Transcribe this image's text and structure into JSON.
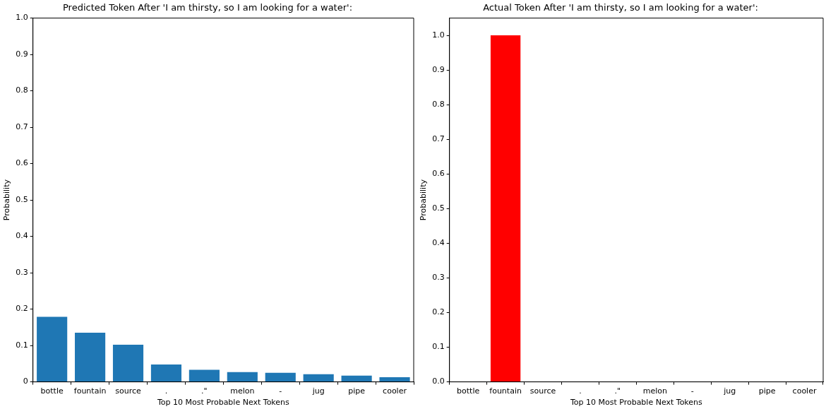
{
  "chart_data": [
    {
      "type": "bar",
      "title": "Predicted Token After 'I am thirsty, so I am looking for a water':",
      "xlabel": "Top 10 Most Probable Next Tokens",
      "ylabel": "Probability",
      "categories": [
        "bottle",
        "fountain",
        "source",
        ".",
        ".\"",
        "melon",
        "-",
        "jug",
        "pipe",
        "cooler"
      ],
      "values": [
        0.179,
        0.135,
        0.102,
        0.048,
        0.033,
        0.027,
        0.025,
        0.021,
        0.017,
        0.013
      ],
      "color": "#1f77b4",
      "ylim": [
        0,
        1
      ],
      "yticks": [
        0,
        {
          "value": 0.1,
          "label": "0.1"
        },
        {
          "value": 0.2,
          "label": "0.2"
        },
        {
          "value": 0.3,
          "label": "0.3"
        },
        {
          "value": 0.4,
          "label": "0.4"
        },
        {
          "value": 0.5,
          "label": "0.5"
        },
        {
          "value": 0.6,
          "label": "0.6"
        },
        {
          "value": 0.7,
          "label": "0.7"
        },
        {
          "value": 0.8,
          "label": "0.8"
        },
        {
          "value": 0.9,
          "label": "0.9"
        },
        {
          "value": 1,
          "label": "1.0"
        }
      ],
      "grid": false
    },
    {
      "type": "bar",
      "title": "Actual Token After 'I am thirsty, so I am looking for a water':",
      "xlabel": "Top 10 Most Probable Next Tokens",
      "ylabel": "Probability",
      "categories": [
        "bottle",
        "fountain",
        "source",
        ".",
        ".\"",
        "melon",
        "-",
        "jug",
        "pipe",
        "cooler"
      ],
      "values": [
        0,
        1,
        0,
        0,
        0,
        0,
        0,
        0,
        0,
        0
      ],
      "color": "#ff0000",
      "ylim": [
        0,
        1.05
      ],
      "yticks": [
        {
          "value": 0,
          "label": "0.0"
        },
        {
          "value": 0.1,
          "label": "0.1"
        },
        {
          "value": 0.2,
          "label": "0.2"
        },
        {
          "value": 0.3,
          "label": "0.3"
        },
        {
          "value": 0.4,
          "label": "0.4"
        },
        {
          "value": 0.5,
          "label": "0.5"
        },
        {
          "value": 0.6,
          "label": "0.6"
        },
        {
          "value": 0.7,
          "label": "0.7"
        },
        {
          "value": 0.8,
          "label": "0.8"
        },
        {
          "value": 0.9,
          "label": "0.9"
        },
        {
          "value": 1,
          "label": "1.0"
        }
      ],
      "grid": false
    }
  ]
}
